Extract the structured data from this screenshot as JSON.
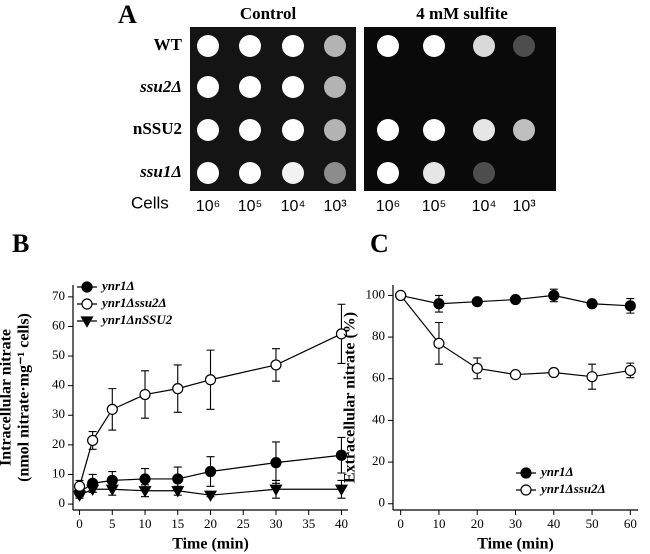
{
  "panel_a": {
    "label": "A",
    "conditions": [
      "Control",
      "4 mM sulfite"
    ],
    "strains": [
      "WT",
      "ssu2Δ",
      "nSSU2",
      "ssu1Δ"
    ],
    "cells_label": "Cells",
    "dilutions": [
      "10⁶",
      "10⁵",
      "10⁴",
      "10³"
    ]
  },
  "chart_data": [
    {
      "type": "line",
      "panel_label": "B",
      "xlabel": "Time (min)",
      "ylabel": [
        "Intracellular nitrate",
        "(nmol nitrate·mg⁻¹ cells)"
      ],
      "x": [
        0,
        2,
        5,
        10,
        15,
        20,
        30,
        40
      ],
      "xlim": [
        -1,
        41
      ],
      "xticks": [
        0,
        5,
        10,
        15,
        20,
        25,
        30,
        35,
        40
      ],
      "ylim": [
        -2,
        74
      ],
      "yticks": [
        0,
        10,
        20,
        30,
        40,
        50,
        60,
        70
      ],
      "legend": "upper left",
      "series": [
        {
          "name": "ynr1Δ",
          "color": "#000000",
          "marker": "circle",
          "filled": true,
          "values": [
            4,
            7,
            8,
            8.5,
            8.5,
            11,
            14,
            16.5
          ],
          "errors": [
            1.5,
            3,
            3,
            3.5,
            4,
            5,
            7,
            6
          ]
        },
        {
          "name": "ynr1Δssu2Δ",
          "color": "#000000",
          "marker": "circle",
          "filled": false,
          "values": [
            6,
            21.5,
            32,
            37,
            39,
            42,
            47,
            57.5
          ],
          "errors": [
            2,
            3,
            7,
            8,
            8,
            10,
            5.5,
            10
          ]
        },
        {
          "name": "ynr1ΔnSSU2",
          "color": "#000000",
          "marker": "triangle",
          "filled": true,
          "values": [
            3,
            5,
            5,
            4.5,
            4.5,
            3,
            5,
            5
          ],
          "errors": [
            1,
            1,
            2,
            2,
            1.5,
            0.5,
            3,
            3
          ]
        }
      ]
    },
    {
      "type": "line",
      "panel_label": "C",
      "xlabel": "Time (min)",
      "ylabel": [
        "Extracellular nitrate (%)"
      ],
      "x": [
        0,
        10,
        20,
        30,
        40,
        50,
        60
      ],
      "xlim": [
        -2,
        62
      ],
      "xticks": [
        0,
        10,
        20,
        30,
        40,
        50,
        60
      ],
      "ylim": [
        -3,
        105
      ],
      "yticks": [
        0,
        20,
        40,
        60,
        80,
        100
      ],
      "legend": "lower right",
      "series": [
        {
          "name": "ynr1Δ",
          "color": "#000000",
          "marker": "circle",
          "filled": true,
          "values": [
            100,
            96,
            97,
            98,
            100,
            96,
            95
          ],
          "errors": [
            0,
            4,
            1,
            1,
            3,
            1,
            3.5
          ]
        },
        {
          "name": "ynr1Δssu2Δ",
          "color": "#000000",
          "marker": "circle",
          "filled": false,
          "values": [
            100,
            77,
            65,
            62,
            63,
            61,
            64
          ],
          "errors": [
            0,
            10,
            5,
            1,
            1,
            6,
            3.5
          ]
        }
      ]
    }
  ]
}
